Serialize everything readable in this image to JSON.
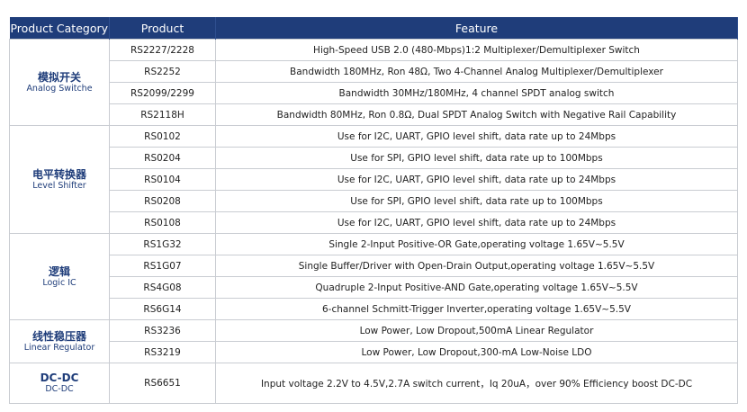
{
  "header": {
    "category": "Product Category",
    "product": "Product",
    "feature": "Feature"
  },
  "groups": [
    {
      "cn": "模拟开关",
      "en": "Analog Switche",
      "rows": [
        {
          "product": "RS2227/2228",
          "feature": "High-Speed USB 2.0 (480-Mbps)1:2 Multiplexer/Demultiplexer Switch"
        },
        {
          "product": "RS2252",
          "feature": "Bandwidth 180MHz, Ron 48Ω, Two 4-Channel Analog Multiplexer/Demultiplexer"
        },
        {
          "product": "RS2099/2299",
          "feature": "Bandwidth 30MHz/180MHz, 4 channel SPDT analog switch"
        },
        {
          "product": "RS2118H",
          "feature": "Bandwidth 80MHz, Ron 0.8Ω,  Dual SPDT Analog Switch with Negative Rail Capability"
        }
      ]
    },
    {
      "cn": "电平转换器",
      "en": "Level Shifter",
      "rows": [
        {
          "product": "RS0102",
          "feature": "Use for I2C, UART, GPIO level shift, data rate up to 24Mbps"
        },
        {
          "product": "RS0204",
          "feature": "Use for SPI, GPIO level shift, data rate up to 100Mbps"
        },
        {
          "product": "RS0104",
          "feature": "Use for I2C, UART, GPIO level shift, data rate up to 24Mbps"
        },
        {
          "product": "RS0208",
          "feature": "Use for SPI, GPIO level shift, data rate up to 100Mbps"
        },
        {
          "product": "RS0108",
          "feature": "Use for I2C, UART, GPIO level shift, data rate up to 24Mbps"
        }
      ]
    },
    {
      "cn": "逻辑",
      "en": "Logic IC",
      "rows": [
        {
          "product": "RS1G32",
          "feature": "Single 2-Input Positive-OR Gate,operating voltage 1.65V~5.5V"
        },
        {
          "product": "RS1G07",
          "feature": "Single Buffer/Driver with Open-Drain Output,operating voltage 1.65V~5.5V"
        },
        {
          "product": "RS4G08",
          "feature": "Quadruple 2-Input Positive-AND Gate,operating voltage 1.65V~5.5V"
        },
        {
          "product": "RS6G14",
          "feature": "6-channel Schmitt-Trigger Inverter,operating voltage 1.65V~5.5V"
        }
      ]
    },
    {
      "cn": "线性稳压器",
      "en": "Linear Regulator",
      "rows": [
        {
          "product": "RS3236",
          "feature": "Low Power, Low Dropout,500mA Linear Regulator"
        },
        {
          "product": "RS3219",
          "feature": "Low Power, Low Dropout,300-mA Low-Noise LDO"
        }
      ]
    },
    {
      "cn": "DC-DC",
      "en": "DC-DC",
      "rows": [
        {
          "product": "RS6651",
          "feature": "Input voltage 2.2V to 4.5V,2.7A switch current，Iq 20uA，over 90% Efficiency boost DC-DC"
        }
      ]
    }
  ]
}
